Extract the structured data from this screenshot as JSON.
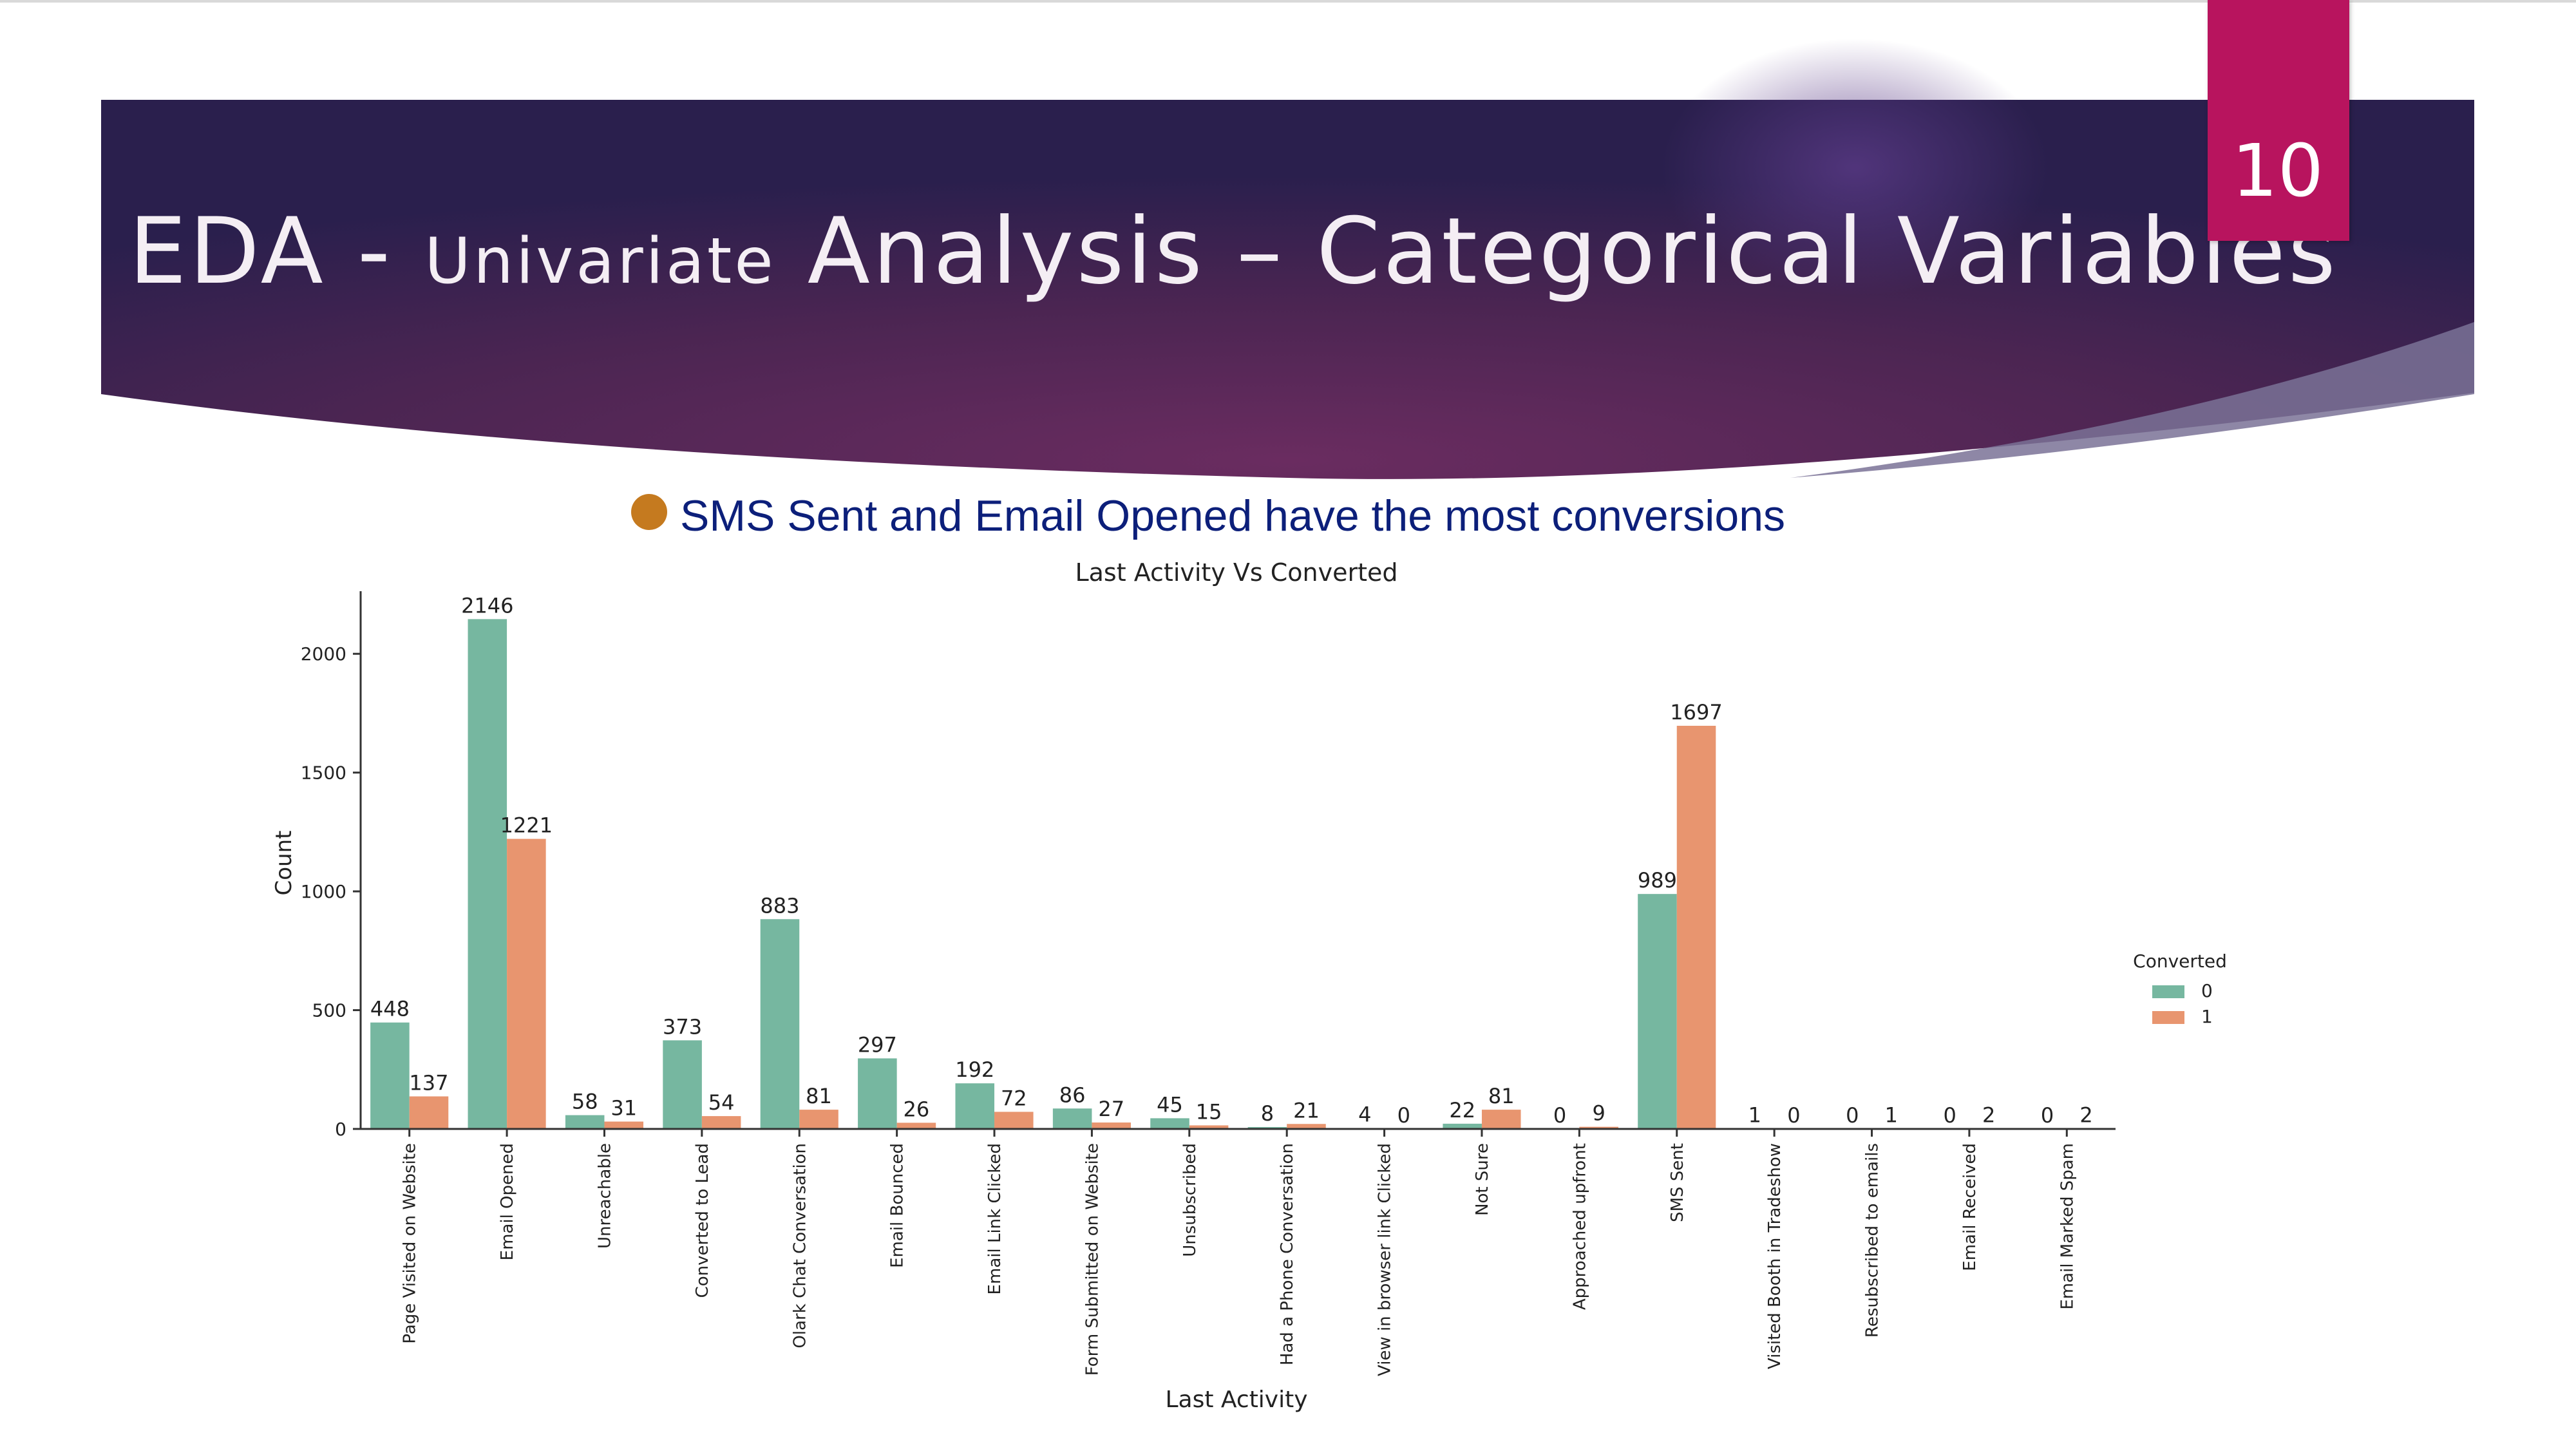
{
  "slide": {
    "title_part1": "EDA - ",
    "title_small": "Univariate",
    "title_part2": " Analysis – Categorical Variables",
    "page_number": "10",
    "bullet_text": "SMS Sent and Email Opened have the most conversions"
  },
  "colors": {
    "banner_dark": "#2a1f4d",
    "banner_mid": "#6a2c60",
    "badge": "#b8145e",
    "bullet": "#c57a1f",
    "bullet_text": "#0c1f7a",
    "series_0": "#76b7a0",
    "series_1": "#e8956f"
  },
  "chart_data": {
    "type": "bar",
    "title": "Last Activity Vs Converted",
    "xlabel": "Last Activity",
    "ylabel": "Count",
    "ylim": [
      0,
      2250
    ],
    "yticks": [
      0,
      500,
      1000,
      1500,
      2000
    ],
    "legend_title": "Converted",
    "legend_position": "right",
    "categories": [
      "Page Visited on Website",
      "Email Opened",
      "Unreachable",
      "Converted to Lead",
      "Olark Chat Conversation",
      "Email Bounced",
      "Email Link Clicked",
      "Form Submitted on Website",
      "Unsubscribed",
      "Had a Phone Conversation",
      "View in browser link Clicked",
      "Not Sure",
      "Approached upfront",
      "SMS Sent",
      "Visited Booth in Tradeshow",
      "Resubscribed to emails",
      "Email Received",
      "Email Marked Spam"
    ],
    "series": [
      {
        "name": "0",
        "values": [
          448,
          2146,
          58,
          373,
          883,
          297,
          192,
          86,
          45,
          8,
          4,
          22,
          0,
          989,
          1,
          0,
          0,
          0
        ]
      },
      {
        "name": "1",
        "values": [
          137,
          1221,
          31,
          54,
          81,
          26,
          72,
          27,
          15,
          21,
          0,
          81,
          9,
          1697,
          0,
          1,
          2,
          2
        ]
      }
    ]
  }
}
